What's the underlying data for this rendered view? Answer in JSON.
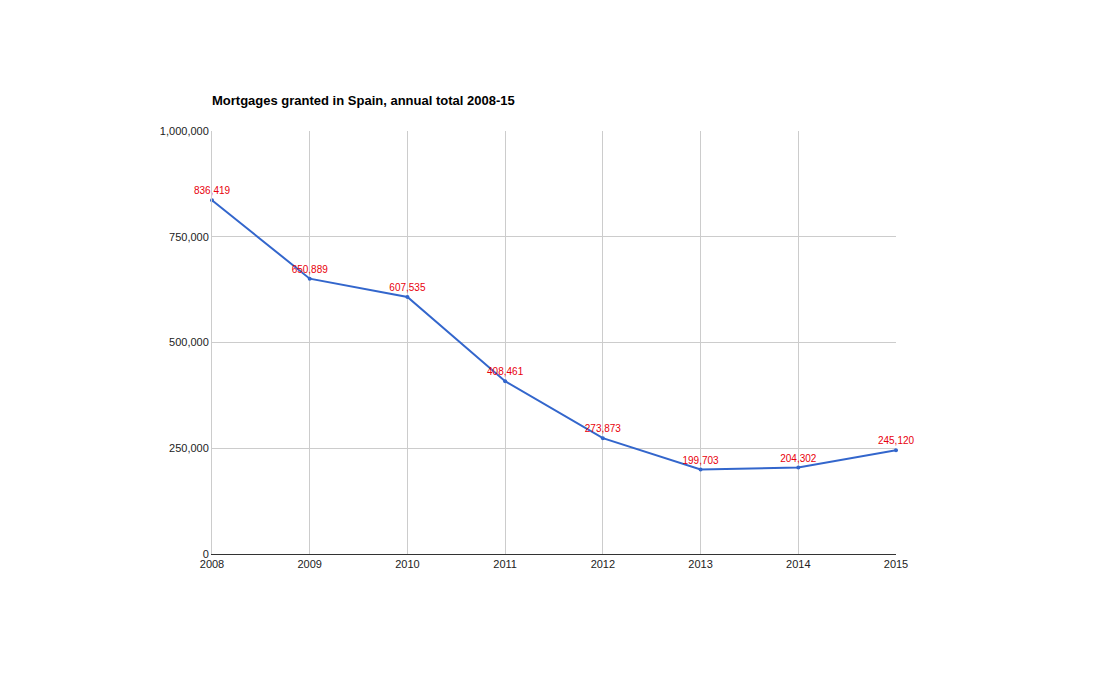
{
  "chart_data": {
    "type": "line",
    "title": "Mortgages granted in Spain, annual total 2008-15",
    "x": [
      2008,
      2009,
      2010,
      2011,
      2012,
      2013,
      2014,
      2015
    ],
    "values": [
      836419,
      650889,
      607535,
      408461,
      273873,
      199703,
      204302,
      245120
    ],
    "value_labels": [
      "836,419",
      "650,889",
      "607,535",
      "408,461",
      "273,873",
      "199,703",
      "204,302",
      "245,120"
    ],
    "color": "#3366cc",
    "marker": "circle",
    "xlim": [
      2008,
      2015
    ],
    "xticks": [
      2008,
      2009,
      2010,
      2011,
      2012,
      2013,
      2014,
      2015
    ],
    "ylim": [
      0,
      1000000
    ],
    "yticks": [
      0,
      {
        "value": 250000,
        "label": "250,000"
      },
      {
        "value": 500000,
        "label": "500,000"
      },
      {
        "value": 750000,
        "label": "750,000"
      },
      {
        "value": 1000000,
        "label": "1,000,000"
      }
    ],
    "grid": true,
    "data_labels": true
  }
}
